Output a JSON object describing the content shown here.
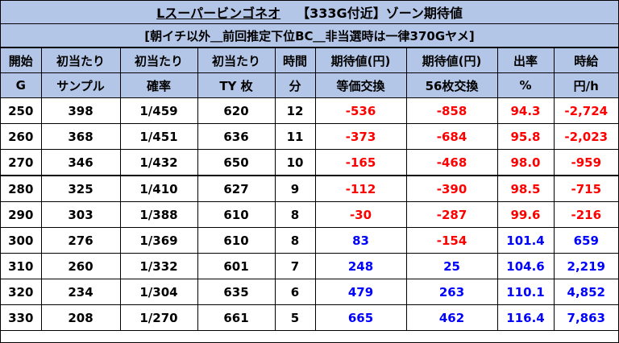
{
  "title": {
    "machine": "Lスーパービンゴネオ",
    "zone": "【333G付近】ゾーン期待値"
  },
  "subtitle": "[朝イチ以外＿前回推定下位BC＿非当選時は一律370Gヤメ]",
  "headers": [
    [
      "開始",
      "G"
    ],
    [
      "初当たり",
      "サンプル"
    ],
    [
      "初当たり",
      "確率"
    ],
    [
      "初当たり",
      "TY 枚"
    ],
    [
      "時間",
      "分"
    ],
    [
      "期待値(円)",
      "等価交換"
    ],
    [
      "期待値(円)",
      "56枚交換"
    ],
    [
      "出率",
      "%"
    ],
    [
      "時給",
      "円/h"
    ]
  ],
  "rows": [
    {
      "g": "250",
      "sample": "398",
      "prob": "1/459",
      "ty": "620",
      "min": "12",
      "ev_eq": "-536",
      "ev_56": "-858",
      "rate": "94.3",
      "hourly": "-2,724"
    },
    {
      "g": "260",
      "sample": "368",
      "prob": "1/451",
      "ty": "636",
      "min": "11",
      "ev_eq": "-373",
      "ev_56": "-684",
      "rate": "95.8",
      "hourly": "-2,023"
    },
    {
      "g": "270",
      "sample": "346",
      "prob": "1/432",
      "ty": "650",
      "min": "10",
      "ev_eq": "-165",
      "ev_56": "-468",
      "rate": "98.0",
      "hourly": "-959"
    },
    {
      "g": "280",
      "sample": "325",
      "prob": "1/410",
      "ty": "627",
      "min": "9",
      "ev_eq": "-112",
      "ev_56": "-390",
      "rate": "98.5",
      "hourly": "-715"
    },
    {
      "g": "290",
      "sample": "303",
      "prob": "1/388",
      "ty": "610",
      "min": "8",
      "ev_eq": "-30",
      "ev_56": "-287",
      "rate": "99.6",
      "hourly": "-216"
    },
    {
      "g": "300",
      "sample": "276",
      "prob": "1/369",
      "ty": "610",
      "min": "8",
      "ev_eq": "83",
      "ev_56": "-154",
      "rate": "101.4",
      "hourly": "659"
    },
    {
      "g": "310",
      "sample": "260",
      "prob": "1/332",
      "ty": "601",
      "min": "7",
      "ev_eq": "248",
      "ev_56": "25",
      "rate": "104.6",
      "hourly": "2,219"
    },
    {
      "g": "320",
      "sample": "234",
      "prob": "1/304",
      "ty": "635",
      "min": "6",
      "ev_eq": "479",
      "ev_56": "263",
      "rate": "110.1",
      "hourly": "4,852"
    },
    {
      "g": "330",
      "sample": "208",
      "prob": "1/270",
      "ty": "661",
      "min": "5",
      "ev_eq": "665",
      "ev_56": "462",
      "rate": "116.4",
      "hourly": "7,863"
    }
  ],
  "colors": {
    "header_bg": "#b4c6e7",
    "negative": "#ff0000",
    "positive": "#0000ff"
  }
}
